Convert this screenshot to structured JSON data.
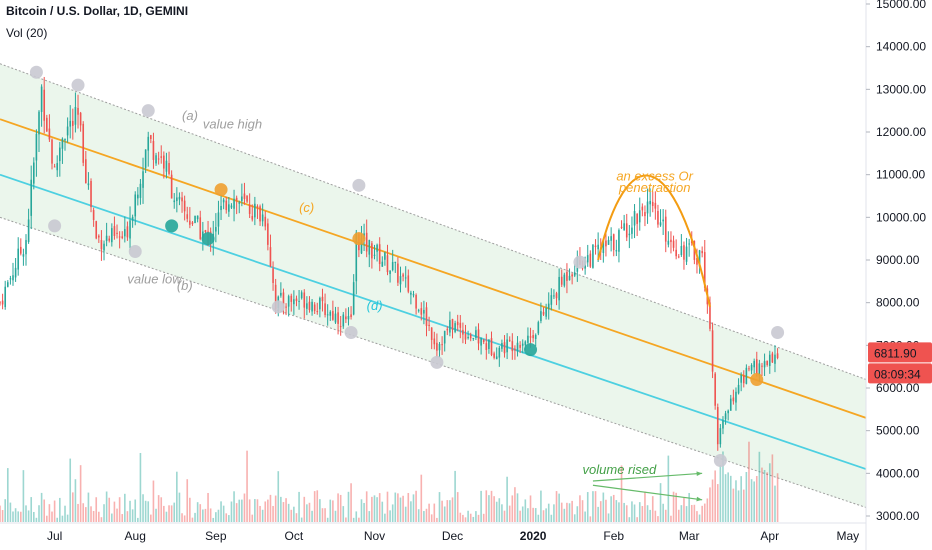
{
  "header": {
    "title": "Bitcoin / U.S. Dollar, 1D, GEMINI",
    "volume_label": "Vol (20)"
  },
  "price_badges": {
    "last_price": "6811.90",
    "countdown": "08:09:34",
    "color": "#ef5350"
  },
  "chart_data": {
    "type": "candlestick",
    "y_axis": {
      "position": "right",
      "range": [
        3000,
        15000
      ],
      "ticks": [
        "15000.00",
        "14000.00",
        "13000.00",
        "12000.00",
        "11000.00",
        "10000.00",
        "9000.00",
        "8000.00",
        "7000.00",
        "6000.00",
        "5000.00",
        "4000.00",
        "3000.00"
      ]
    },
    "x_axis": {
      "labels": [
        "Jul",
        "Aug",
        "Sep",
        "Oct",
        "Nov",
        "Dec",
        "2020",
        "Feb",
        "Mar",
        "Apr",
        "May"
      ],
      "range": [
        "2019-06-10",
        "2020-05-08"
      ]
    },
    "price_path": [
      [
        "2019-06-10",
        8000
      ],
      [
        "2019-06-20",
        9500
      ],
      [
        "2019-06-26",
        13000
      ],
      [
        "2019-07-01",
        11000
      ],
      [
        "2019-07-04",
        12000
      ],
      [
        "2019-07-10",
        12300
      ],
      [
        "2019-07-17",
        9500
      ],
      [
        "2019-07-28",
        9500
      ],
      [
        "2019-08-06",
        11800
      ],
      [
        "2019-08-12",
        11300
      ],
      [
        "2019-08-17",
        10300
      ],
      [
        "2019-08-29",
        9500
      ],
      [
        "2019-09-06",
        10500
      ],
      [
        "2019-09-20",
        10000
      ],
      [
        "2019-09-24",
        8000
      ],
      [
        "2019-10-05",
        8100
      ],
      [
        "2019-10-23",
        7500
      ],
      [
        "2019-10-25",
        9500
      ],
      [
        "2019-11-01",
        9200
      ],
      [
        "2019-11-08",
        8800
      ],
      [
        "2019-11-18",
        8000
      ],
      [
        "2019-11-25",
        7000
      ],
      [
        "2019-12-01",
        7500
      ],
      [
        "2019-12-17",
        6900
      ],
      [
        "2019-12-31",
        7200
      ],
      [
        "2020-01-15",
        8800
      ],
      [
        "2020-02-01",
        9400
      ],
      [
        "2020-02-13",
        10300
      ],
      [
        "2020-02-25",
        9300
      ],
      [
        "2020-03-06",
        9100
      ],
      [
        "2020-03-08",
        8000
      ],
      [
        "2020-03-12",
        4800
      ],
      [
        "2020-03-20",
        6200
      ],
      [
        "2020-03-27",
        6500
      ],
      [
        "2020-04-04",
        6811.9
      ]
    ],
    "channel": {
      "upper": [
        [
          "2019-06-10",
          13600
        ],
        [
          "2020-05-08",
          6200
        ]
      ],
      "middle": [
        [
          "2019-06-10",
          12300
        ],
        [
          "2020-05-08",
          5300
        ]
      ],
      "lower_fill": [
        [
          "2019-06-10",
          10000
        ],
        [
          "2020-05-08",
          3200
        ]
      ],
      "support": [
        [
          "2019-06-10",
          11000
        ],
        [
          "2020-05-08",
          4100
        ]
      ]
    },
    "markers": [
      {
        "date": "2019-06-24",
        "price": 13400,
        "kind": "high"
      },
      {
        "date": "2019-07-10",
        "price": 13100,
        "kind": "high"
      },
      {
        "date": "2019-08-06",
        "price": 12500,
        "kind": "high"
      },
      {
        "date": "2019-10-26",
        "price": 10750,
        "kind": "high"
      },
      {
        "date": "2020-01-19",
        "price": 8950,
        "kind": "high"
      },
      {
        "date": "2020-04-04",
        "price": 7300,
        "kind": "high"
      },
      {
        "date": "2019-07-01",
        "price": 9800,
        "kind": "high"
      },
      {
        "date": "2019-08-01",
        "price": 9200,
        "kind": "high"
      },
      {
        "date": "2019-09-25",
        "price": 7900,
        "kind": "high"
      },
      {
        "date": "2019-10-23",
        "price": 7300,
        "kind": "high"
      },
      {
        "date": "2019-11-25",
        "price": 6600,
        "kind": "high"
      },
      {
        "date": "2020-03-13",
        "price": 4300,
        "kind": "high"
      },
      {
        "date": "2019-08-15",
        "price": 9800,
        "kind": "touch"
      },
      {
        "date": "2019-08-29",
        "price": 9500,
        "kind": "touch"
      },
      {
        "date": "2019-12-31",
        "price": 6900,
        "kind": "touch"
      },
      {
        "date": "2019-09-03",
        "price": 10650,
        "kind": "mid"
      },
      {
        "date": "2019-10-26",
        "price": 9500,
        "kind": "mid"
      },
      {
        "date": "2020-03-27",
        "price": 6200,
        "kind": "mid"
      }
    ],
    "annotations": [
      {
        "text": "(a)",
        "date": "2019-08-19",
        "price": 12280,
        "color": "#9e9e9e"
      },
      {
        "text": "value high",
        "date": "2019-08-27",
        "price": 12080,
        "color": "#9e9e9e"
      },
      {
        "text": "(c)",
        "date": "2019-10-03",
        "price": 10130,
        "color": "#f5a623"
      },
      {
        "text": "(d)",
        "date": "2019-10-29",
        "price": 7830,
        "color": "#26c6da"
      },
      {
        "text": "value low",
        "date": "2019-07-29",
        "price": 8450,
        "color": "#9e9e9e"
      },
      {
        "text": "(b)",
        "date": "2019-08-17",
        "price": 8300,
        "color": "#9e9e9e"
      },
      {
        "text": "an excess Or",
        "date": "2020-02-02",
        "price": 10860,
        "color": "#f5a623"
      },
      {
        "text": "penetraction",
        "date": "2020-02-03",
        "price": 10590,
        "color": "#f5a623"
      },
      {
        "text": "volume rised",
        "date": "2020-01-20",
        "price": 3990,
        "color": "#43a047"
      }
    ],
    "colors": {
      "up": "#26a69a",
      "down": "#ef5350",
      "channel_fill": "#e8f5e9",
      "channel_border": "#9e9e9e",
      "middle_line": "#f5a623",
      "support_line": "#4dd0e1",
      "arc": "#f39c12",
      "arrow": "#66bb6a",
      "grid_marker_high": "#c9c9d1",
      "marker_touch": "#26a69a",
      "marker_mid": "#f0a030"
    }
  }
}
